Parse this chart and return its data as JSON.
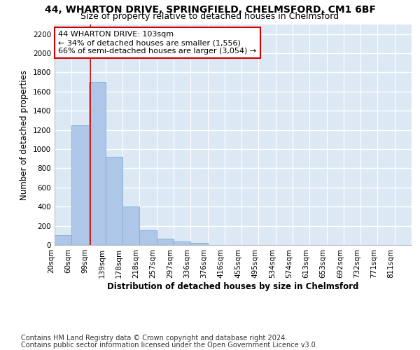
{
  "title": "44, WHARTON DRIVE, SPRINGFIELD, CHELMSFORD, CM1 6BF",
  "subtitle": "Size of property relative to detached houses in Chelmsford",
  "xlabel_bottom": "Distribution of detached houses by size in Chelmsford",
  "ylabel": "Number of detached properties",
  "bin_labels": [
    "20sqm",
    "60sqm",
    "99sqm",
    "139sqm",
    "178sqm",
    "218sqm",
    "257sqm",
    "297sqm",
    "336sqm",
    "376sqm",
    "416sqm",
    "455sqm",
    "495sqm",
    "534sqm",
    "574sqm",
    "613sqm",
    "653sqm",
    "692sqm",
    "732sqm",
    "771sqm",
    "811sqm"
  ],
  "bar_values": [
    100,
    1250,
    1700,
    920,
    400,
    150,
    65,
    35,
    25,
    0,
    0,
    0,
    0,
    0,
    0,
    0,
    0,
    0,
    0,
    0,
    0
  ],
  "bar_color": "#aec6e8",
  "bar_edge_color": "#7aafd4",
  "ylim": [
    0,
    2300
  ],
  "yticks": [
    0,
    200,
    400,
    600,
    800,
    1000,
    1200,
    1400,
    1600,
    1800,
    2000,
    2200
  ],
  "vline_x": 2.08,
  "vline_color": "#cc0000",
  "annotation_title": "44 WHARTON DRIVE: 103sqm",
  "annotation_line1": "← 34% of detached houses are smaller (1,556)",
  "annotation_line2": "66% of semi-detached houses are larger (3,054) →",
  "annotation_box_color": "#ffffff",
  "annotation_box_edge": "#cc0000",
  "footer_line1": "Contains HM Land Registry data © Crown copyright and database right 2024.",
  "footer_line2": "Contains public sector information licensed under the Open Government Licence v3.0.",
  "background_color": "#dce9f5",
  "grid_color": "#ffffff",
  "fig_bg": "#ffffff",
  "title_fontsize": 10,
  "subtitle_fontsize": 9,
  "axis_fontsize": 8.5,
  "tick_fontsize": 7.5,
  "annotation_fontsize": 8,
  "footer_fontsize": 7
}
